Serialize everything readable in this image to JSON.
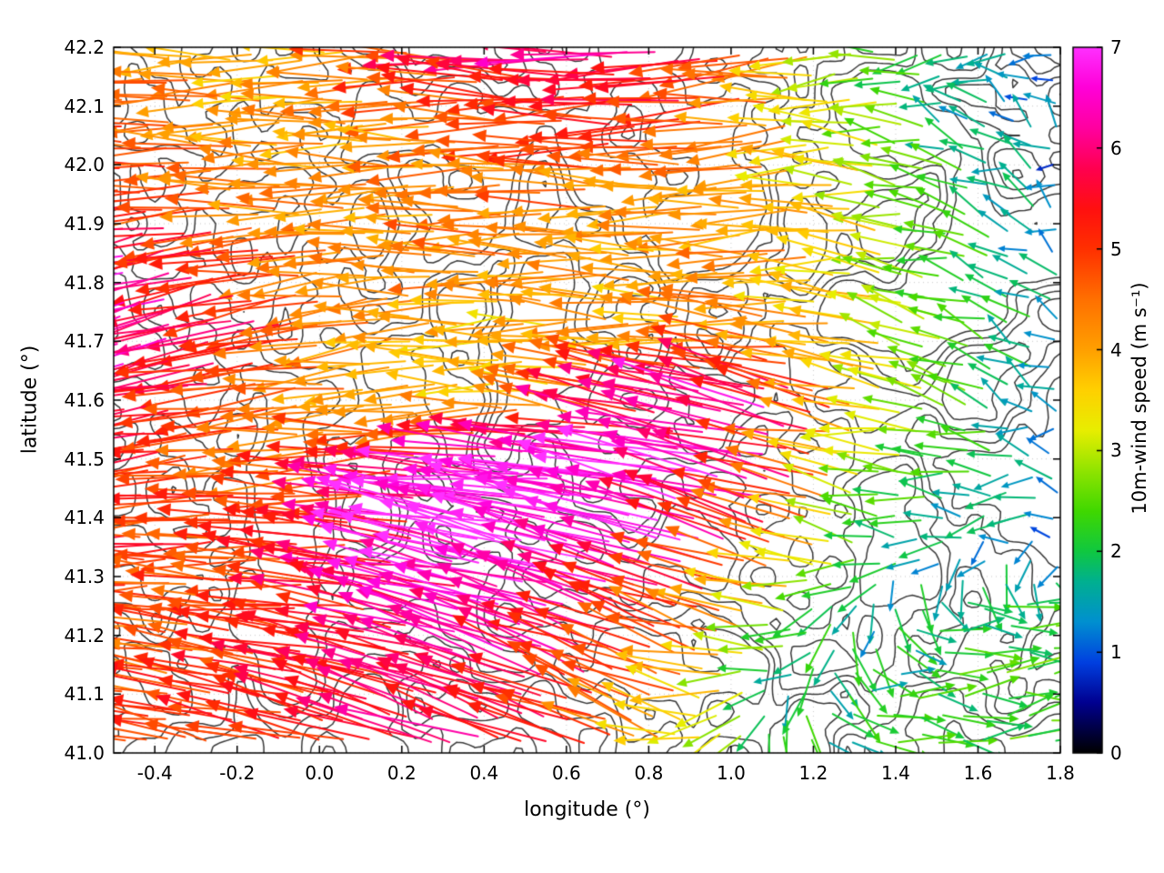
{
  "figure": {
    "background": "#ffffff"
  },
  "chart_data": {
    "type": "quiver",
    "title": "",
    "xlabel": "longitude (°)",
    "ylabel": "latitude (°)",
    "xlim": [
      -0.5,
      1.8
    ],
    "ylim": [
      41.0,
      42.2
    ],
    "grid": true,
    "xtick_values": [
      -0.4,
      -0.2,
      0.0,
      0.2,
      0.4,
      0.6,
      0.8,
      1.0,
      1.2,
      1.4,
      1.6,
      1.8
    ],
    "xtick_labels": [
      "-0.4",
      "-0.2",
      "0.0",
      "0.2",
      "0.4",
      "0.6",
      "0.8",
      "1.0",
      "1.2",
      "1.4",
      "1.6",
      "1.8"
    ],
    "ytick_values": [
      41.0,
      41.1,
      41.2,
      41.3,
      41.4,
      41.5,
      41.6,
      41.7,
      41.8,
      41.9,
      42.0,
      42.1,
      42.2
    ],
    "ytick_labels": [
      "41.0",
      "41.1",
      "41.2",
      "41.3",
      "41.4",
      "41.5",
      "41.6",
      "41.7",
      "41.8",
      "41.9",
      "42.0",
      "42.1",
      "42.2"
    ],
    "contour": {
      "color": "#3a3a3a",
      "description": "terrain elevation contour lines"
    },
    "colorbar": {
      "label": "10m-wind speed (m s⁻¹)",
      "min": 0,
      "max": 7,
      "tick_values": [
        0,
        1,
        2,
        3,
        4,
        5,
        6,
        7
      ],
      "tick_labels": [
        "0",
        "1",
        "2",
        "3",
        "4",
        "5",
        "6",
        "7"
      ],
      "palette": [
        [
          0.0,
          "#000000"
        ],
        [
          0.5,
          "#000090"
        ],
        [
          0.9,
          "#0040e0"
        ],
        [
          1.3,
          "#0090d0"
        ],
        [
          1.7,
          "#00b090"
        ],
        [
          2.0,
          "#10c840"
        ],
        [
          2.4,
          "#40d800"
        ],
        [
          2.8,
          "#90e400"
        ],
        [
          3.2,
          "#e8ee00"
        ],
        [
          3.6,
          "#ffd000"
        ],
        [
          4.0,
          "#ffa000"
        ],
        [
          4.5,
          "#ff7000"
        ],
        [
          5.0,
          "#ff3000"
        ],
        [
          5.4,
          "#ff1010"
        ],
        [
          5.8,
          "#ff0050"
        ],
        [
          6.2,
          "#ff00a0"
        ],
        [
          6.6,
          "#ff00d8"
        ],
        [
          7.0,
          "#ff30ff"
        ]
      ]
    },
    "wind_field": {
      "units": "m s⁻¹",
      "lons": [
        -0.5,
        -0.27,
        -0.04,
        0.19,
        0.42,
        0.65,
        0.88,
        1.11,
        1.34,
        1.57,
        1.8
      ],
      "lats": [
        42.2,
        42.08,
        41.96,
        41.84,
        41.72,
        41.6,
        41.48,
        41.36,
        41.24,
        41.12,
        41.0
      ],
      "speed": [
        [
          4.5,
          4.0,
          3.8,
          4.5,
          5.5,
          6.2,
          6.0,
          4.5,
          2.5,
          1.5,
          1.2
        ],
        [
          4.8,
          4.5,
          4.0,
          4.2,
          4.5,
          5.0,
          5.5,
          4.2,
          3.0,
          1.6,
          1.1
        ],
        [
          5.2,
          4.6,
          4.2,
          4.0,
          4.2,
          4.5,
          4.2,
          4.0,
          3.2,
          2.0,
          1.2
        ],
        [
          6.5,
          5.5,
          4.6,
          4.2,
          4.4,
          4.2,
          4.0,
          4.2,
          3.5,
          2.2,
          1.4
        ],
        [
          6.8,
          6.2,
          5.0,
          4.0,
          3.6,
          3.8,
          4.0,
          4.2,
          3.4,
          2.4,
          1.5
        ],
        [
          5.8,
          5.2,
          4.6,
          4.0,
          3.6,
          4.2,
          5.8,
          6.4,
          3.8,
          2.4,
          1.6
        ],
        [
          5.2,
          4.9,
          4.6,
          5.2,
          6.6,
          7.0,
          7.0,
          6.2,
          3.0,
          2.0,
          1.5
        ],
        [
          5.3,
          5.1,
          4.9,
          5.6,
          7.0,
          7.0,
          6.6,
          4.8,
          2.0,
          1.4,
          1.2
        ],
        [
          4.9,
          4.6,
          5.1,
          5.6,
          6.4,
          6.4,
          5.4,
          3.0,
          1.6,
          2.0,
          2.2
        ],
        [
          4.6,
          4.9,
          5.1,
          5.5,
          6.0,
          5.6,
          4.4,
          2.0,
          1.8,
          2.2,
          2.4
        ],
        [
          4.9,
          5.1,
          5.3,
          5.6,
          5.8,
          5.0,
          3.4,
          2.0,
          2.0,
          2.3,
          2.5
        ]
      ],
      "dir_deg": [
        [
          180,
          180,
          178,
          182,
          176,
          178,
          180,
          185,
          190,
          200,
          150
        ],
        [
          180,
          180,
          180,
          180,
          178,
          180,
          182,
          185,
          172,
          162,
          140
        ],
        [
          183,
          181,
          180,
          180,
          180,
          178,
          180,
          182,
          175,
          160,
          150
        ],
        [
          196,
          190,
          185,
          180,
          180,
          180,
          178,
          180,
          174,
          164,
          150
        ],
        [
          202,
          196,
          190,
          185,
          180,
          178,
          176,
          175,
          170,
          160,
          150
        ],
        [
          192,
          188,
          185,
          182,
          180,
          172,
          168,
          165,
          170,
          164,
          155
        ],
        [
          186,
          184,
          182,
          180,
          175,
          172,
          170,
          168,
          174,
          180,
          170
        ],
        [
          183,
          181,
          178,
          172,
          168,
          165,
          162,
          160,
          170,
          195,
          205
        ],
        [
          178,
          175,
          172,
          168,
          165,
          162,
          160,
          165,
          250,
          370,
          365
        ],
        [
          173,
          170,
          168,
          165,
          162,
          160,
          158,
          200,
          350,
          362,
          368
        ],
        [
          170,
          168,
          166,
          162,
          160,
          158,
          160,
          300,
          355,
          362,
          368
        ]
      ]
    }
  }
}
